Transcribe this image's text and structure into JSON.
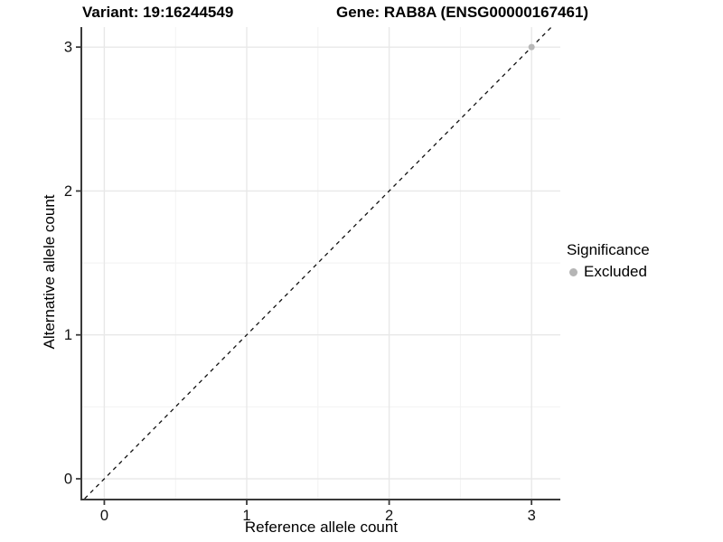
{
  "figure": {
    "title_left": "Variant: 19:16244549",
    "title_right": "Gene: RAB8A (ENSG00000167461)"
  },
  "chart_data": {
    "type": "scatter",
    "title": "Variant: 19:16244549   Gene: RAB8A (ENSG00000167461)",
    "xlabel": "Reference allele count",
    "ylabel": "Alternative allele count",
    "xlim": [
      -0.155,
      3.202
    ],
    "ylim": [
      -0.138,
      3.139
    ],
    "x_ticks": [
      0,
      1,
      2,
      3
    ],
    "y_ticks": [
      0,
      1,
      2,
      3
    ],
    "x_minor_ticks": [
      0.5,
      1.5,
      2.5
    ],
    "y_minor_ticks": [
      0.5,
      1.5,
      2.5
    ],
    "grid": "major+minor",
    "identity_line": {
      "slope": 1,
      "intercept": 0,
      "style": "dashed",
      "color": "#111111"
    },
    "points": [
      {
        "x": 3,
        "y": 3,
        "significance": "Excluded",
        "color": "#b8b8b8"
      }
    ],
    "legend": {
      "position": "right",
      "title": "Significance",
      "items": [
        {
          "label": "Excluded",
          "color": "#b5b5b5"
        }
      ]
    },
    "colors": {
      "major_grid": "#e8e8e8",
      "minor_grid": "#f2f2f2",
      "axis_line": "#3a3a3a",
      "tick_text": "#111111",
      "excluded": "#b5b5b5"
    }
  }
}
